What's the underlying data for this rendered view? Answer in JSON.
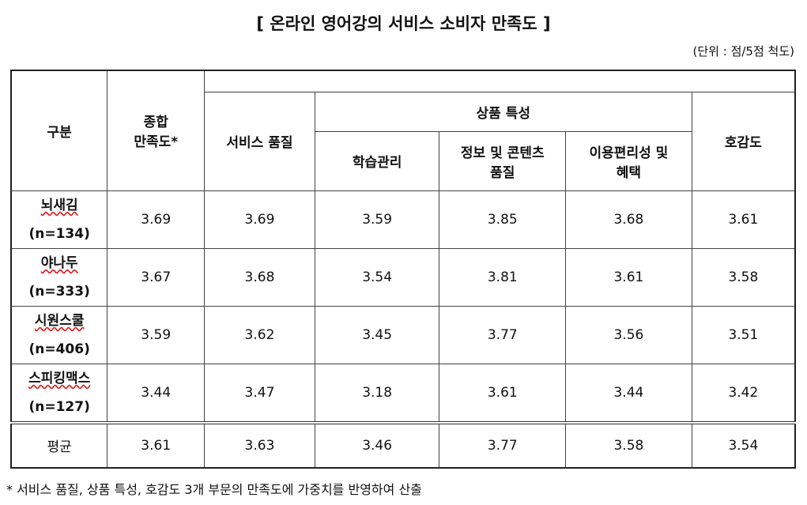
{
  "title": "[ 온라인 영어강의 서비스 소비자 만족도 ]",
  "unit": "(단위 : 점/5점 척도)",
  "table": {
    "header": {
      "group": "구분",
      "overall": "종합\n만족도*",
      "service": "서비스 품질",
      "product": "상품 특성",
      "product_sub": [
        "학습관리",
        "정보 및 콘텐츠\n품질",
        "이용편리성 및\n혜택"
      ],
      "favor": "호감도"
    },
    "rows": [
      {
        "name": "뇌새김",
        "n": "(n=134)",
        "values": [
          "3.69",
          "3.69",
          "3.59",
          "3.85",
          "3.68",
          "3.61"
        ]
      },
      {
        "name": "야나두",
        "n": "(n=333)",
        "values": [
          "3.67",
          "3.68",
          "3.54",
          "3.81",
          "3.61",
          "3.58"
        ]
      },
      {
        "name": "시원스쿨",
        "n": "(n=406)",
        "values": [
          "3.59",
          "3.62",
          "3.45",
          "3.77",
          "3.56",
          "3.51"
        ]
      },
      {
        "name": "스피킹맥스",
        "n": "(n=127)",
        "values": [
          "3.44",
          "3.47",
          "3.18",
          "3.61",
          "3.44",
          "3.42"
        ]
      }
    ],
    "average": {
      "name": "평균",
      "values": [
        "3.61",
        "3.63",
        "3.46",
        "3.77",
        "3.58",
        "3.54"
      ]
    }
  },
  "footnote": "* 서비스 품질, 상품 특성, 호감도 3개 부문의 만족도에 가중치를 반영하여 산출"
}
